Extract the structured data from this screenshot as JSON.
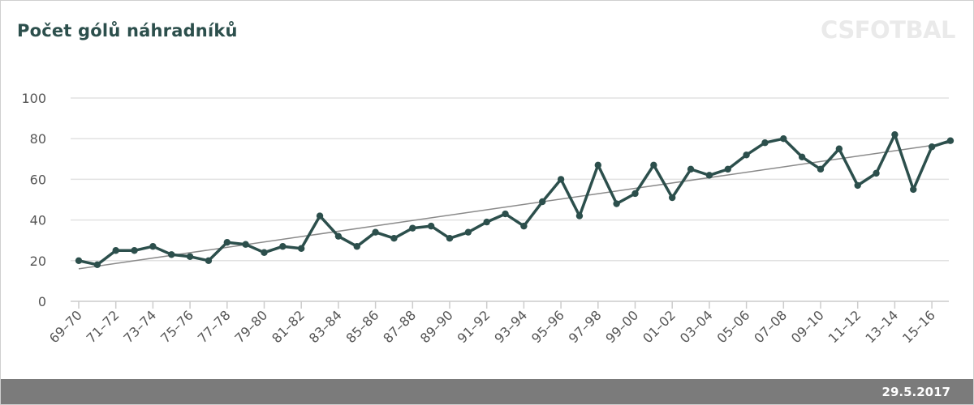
{
  "page": {
    "logo_text": "CSFOTBAL",
    "date": "29.5.2017"
  },
  "colors": {
    "series": "#2c4f4c",
    "trend": "#8a8a8a",
    "grid": "#e2e2e2",
    "footer": "#7b7b7b"
  },
  "chart_data": {
    "type": "line",
    "title": "Počet gólů náhradníků",
    "xlabel": "",
    "ylabel": "",
    "ylim": [
      0,
      100
    ],
    "yticks": [
      0,
      20,
      40,
      60,
      80,
      100
    ],
    "grid": true,
    "legend": "none",
    "categories": [
      "69–70",
      "70–71",
      "71–72",
      "72–73",
      "73–74",
      "74–75",
      "75–76",
      "76–77",
      "77–78",
      "78–79",
      "79–80",
      "80–81",
      "81–82",
      "82–83",
      "83–84",
      "84–85",
      "85–86",
      "86–87",
      "87–88",
      "88–89",
      "89–90",
      "90–91",
      "91–92",
      "92–93",
      "93–94",
      "94–95",
      "95–96",
      "96–97",
      "97–98",
      "98–99",
      "99–00",
      "00–01",
      "01–02",
      "02–03",
      "03–04",
      "04–05",
      "05–06",
      "06–07",
      "07–08",
      "08–09",
      "09–10",
      "10–11",
      "11–12",
      "12–13",
      "13–14",
      "14–15",
      "15–16",
      "16–17"
    ],
    "xtick_labels": [
      "69–70",
      "71–72",
      "73–74",
      "75–76",
      "77–78",
      "79–80",
      "81–82",
      "83–84",
      "85–86",
      "87–88",
      "89–90",
      "91–92",
      "93–94",
      "95–96",
      "97–98",
      "99–00",
      "01–02",
      "03–04",
      "05–06",
      "07–08",
      "09–10",
      "11–12",
      "13–14",
      "15–16"
    ],
    "series": [
      {
        "values": [
          20,
          18,
          25,
          25,
          27,
          23,
          22,
          20,
          29,
          28,
          24,
          27,
          26,
          42,
          32,
          27,
          34,
          31,
          36,
          37,
          31,
          34,
          39,
          43,
          37,
          49,
          60,
          42,
          67,
          48,
          53,
          67,
          51,
          65,
          62,
          65,
          72,
          78,
          80,
          71,
          65,
          75,
          57,
          63,
          82,
          55,
          76,
          79
        ]
      }
    ],
    "trendline": {
      "start": 16,
      "end": 78
    }
  }
}
